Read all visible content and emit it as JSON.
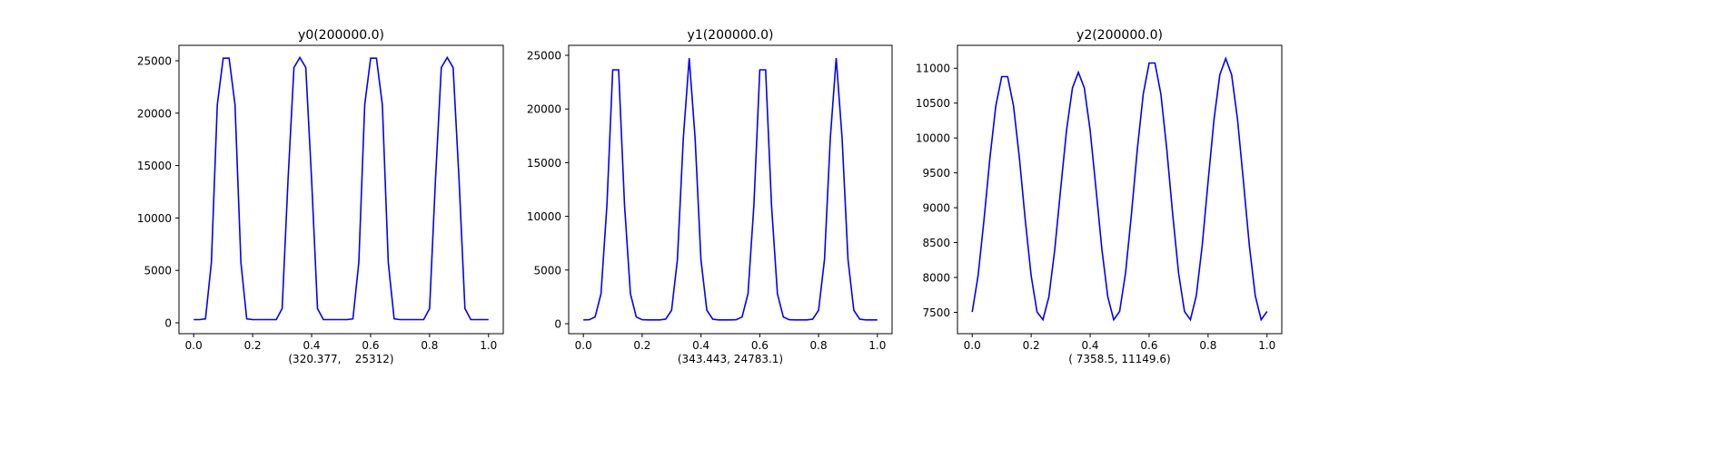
{
  "chart_data": [
    {
      "type": "line",
      "title": "y0(200000.0)",
      "xlabel": "(320.377,    25312)",
      "xlim": [
        -0.05,
        1.05
      ],
      "ylim": [
        -1040,
        26470
      ],
      "xticks": [
        "0.0",
        "0.2",
        "0.4",
        "0.6",
        "0.8",
        "1.0"
      ],
      "yticks": [
        0,
        5000,
        10000,
        15000,
        20000,
        25000
      ],
      "color": "#0000ff",
      "grid": false,
      "x_start": 0,
      "x_step": 0.02,
      "y": [
        300,
        300,
        370,
        5760,
        20800,
        25240,
        25240,
        20800,
        5760,
        370,
        300,
        300,
        300,
        300,
        300,
        1360,
        13700,
        24350,
        25300,
        24350,
        13700,
        1360,
        300,
        300,
        300,
        300,
        300,
        370,
        5760,
        20800,
        25240,
        25240,
        20800,
        5760,
        370,
        300,
        300,
        300,
        300,
        300,
        1360,
        13700,
        24350,
        25300,
        24350,
        13700,
        1360,
        300,
        300,
        300,
        300
      ]
    },
    {
      "type": "line",
      "title": "y1(200000.0)",
      "xlabel": "(343.443, 24783.1)",
      "xlim": [
        -0.05,
        1.05
      ],
      "ylim": [
        -930,
        25930
      ],
      "xticks": [
        "0.0",
        "0.2",
        "0.4",
        "0.6",
        "0.8",
        "1.0"
      ],
      "yticks": [
        0,
        5000,
        10000,
        15000,
        20000,
        25000
      ],
      "color": "#0000ff",
      "grid": false,
      "x_start": 0,
      "x_step": 0.02,
      "y": [
        350,
        370,
        620,
        2790,
        11030,
        23650,
        23650,
        11030,
        2790,
        620,
        370,
        350,
        350,
        355,
        420,
        1250,
        5960,
        17260,
        24750,
        17260,
        5960,
        1250,
        420,
        355,
        350,
        350,
        370,
        620,
        2790,
        11030,
        23650,
        23650,
        11030,
        2790,
        620,
        370,
        350,
        350,
        355,
        420,
        1250,
        5960,
        17260,
        24750,
        17260,
        5960,
        1250,
        420,
        355,
        350,
        350
      ]
    },
    {
      "type": "line",
      "title": "y2(200000.0)",
      "xlabel": "( 7358.5, 11149.6)",
      "xlim": [
        -0.05,
        1.05
      ],
      "ylim": [
        7194,
        11328
      ],
      "xticks": [
        "0.0",
        "0.2",
        "0.4",
        "0.6",
        "0.8",
        "1.0"
      ],
      "yticks": [
        7500,
        8000,
        8500,
        9000,
        9500,
        10000,
        10500,
        11000
      ],
      "color": "#0000ff",
      "grid": false,
      "x_start": 0,
      "x_step": 0.02,
      "y": [
        7505,
        8026,
        8827,
        9710,
        10460,
        10880,
        10880,
        10460,
        9710,
        8827,
        8026,
        7505,
        7394,
        7720,
        8400,
        9270,
        10115,
        10720,
        10940,
        10720,
        10115,
        9270,
        8400,
        7720,
        7394,
        7512,
        8062,
        8907,
        9840,
        10630,
        11075,
        11075,
        10630,
        9840,
        8907,
        8062,
        7512,
        7394,
        7739,
        8457,
        9375,
        10265,
        10905,
        11140,
        10905,
        10265,
        9375,
        8457,
        7739,
        7394,
        7512
      ]
    }
  ]
}
